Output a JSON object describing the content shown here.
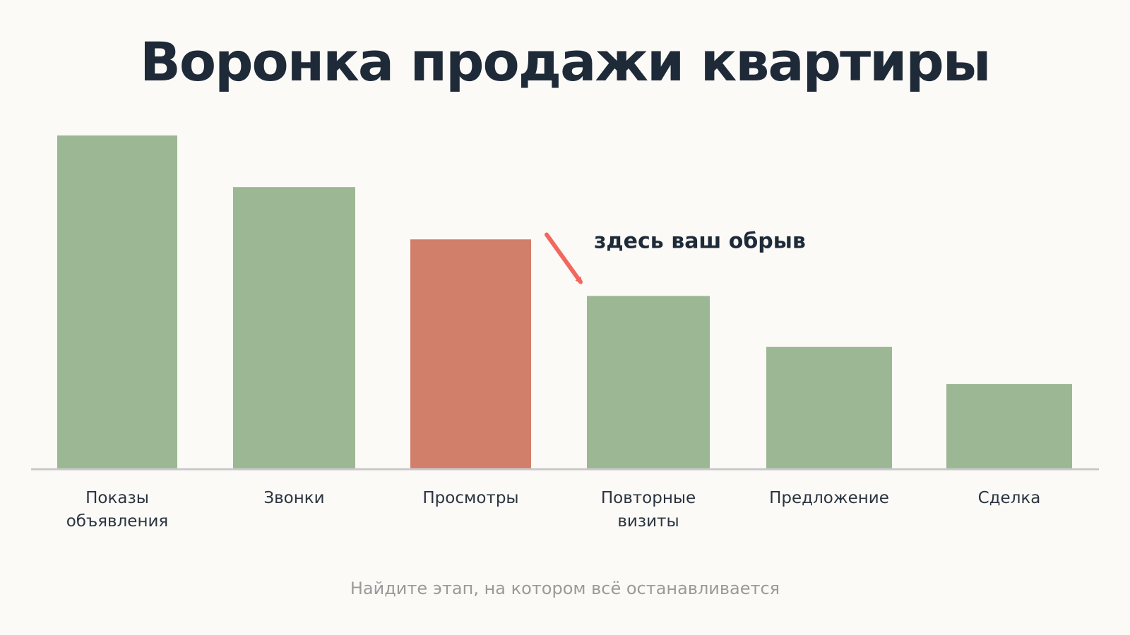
{
  "slide": {
    "title": "Воронка продажи квартиры",
    "footnote": "Найдите этап, на котором всё останавливается"
  },
  "chart_data": {
    "type": "bar",
    "title": "Воронка продажи квартиры",
    "categories": [
      [
        "Показы",
        "объявления"
      ],
      [
        "Звонки"
      ],
      [
        "Просмотры"
      ],
      [
        "Повторные",
        "визиты"
      ],
      [
        "Предложение"
      ],
      [
        "Сделка"
      ]
    ],
    "values": [
      100,
      84.5,
      68.8,
      51.8,
      36.5,
      25.4
    ],
    "ylim": [
      0,
      100
    ],
    "highlight_index": 2,
    "colors": {
      "bar": "#9cb794",
      "highlight": "#d17e6b",
      "arrow": "#f2685f",
      "baseline": "#c9c9c9"
    },
    "annotation": {
      "text": "здесь ваш обрыв",
      "points_to_category": 3
    },
    "grid": false,
    "legend": "none"
  }
}
